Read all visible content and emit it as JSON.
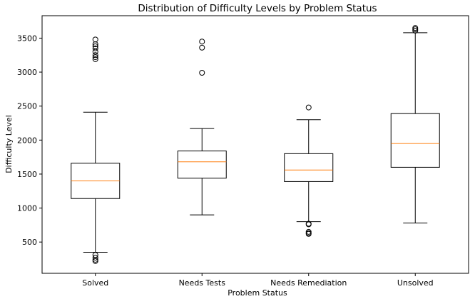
{
  "chart_data": {
    "type": "box",
    "title": "Distribution of Difficulty Levels by Problem Status",
    "xlabel": "Problem Status",
    "ylabel": "Difficulty Level",
    "ylim": [
      40,
      3830
    ],
    "yticks": [
      500,
      1000,
      1500,
      2000,
      2500,
      3000,
      3500
    ],
    "grid": false,
    "colors": {
      "box": "#000000",
      "median": "#ff7f0e"
    },
    "categories": [
      "Solved",
      "Needs Tests",
      "Needs Remediation",
      "Unsolved"
    ],
    "boxes": [
      {
        "category": "Solved",
        "whisker_low": 350,
        "q1": 1140,
        "median": 1400,
        "q3": 1660,
        "whisker_high": 2410,
        "outliers": [
          3480,
          3410,
          3380,
          3350,
          3300,
          3250,
          3220,
          3190,
          310,
          270,
          240,
          220
        ]
      },
      {
        "category": "Needs Tests",
        "whisker_low": 900,
        "q1": 1440,
        "median": 1680,
        "q3": 1840,
        "whisker_high": 2170,
        "outliers": [
          3450,
          3360,
          2990
        ]
      },
      {
        "category": "Needs Remediation",
        "whisker_low": 800,
        "q1": 1390,
        "median": 1560,
        "q3": 1800,
        "whisker_high": 2300,
        "outliers": [
          2480,
          770,
          760,
          650,
          630,
          620
        ]
      },
      {
        "category": "Unsolved",
        "whisker_low": 780,
        "q1": 1600,
        "median": 1950,
        "q3": 2390,
        "whisker_high": 3580,
        "outliers": [
          3650,
          3630,
          3610
        ]
      }
    ]
  }
}
